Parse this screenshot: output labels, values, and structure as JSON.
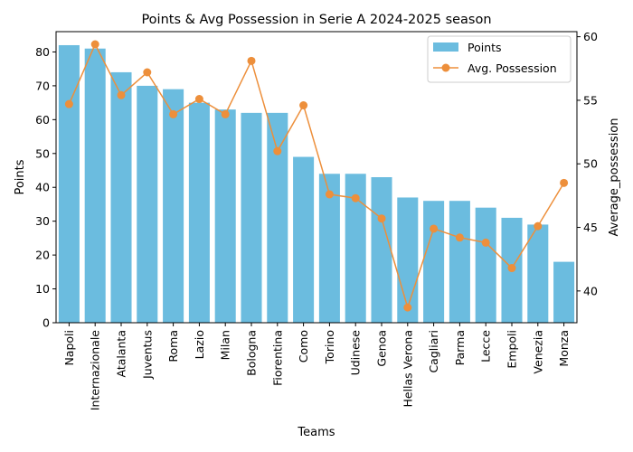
{
  "chart_data": {
    "type": "bar+line",
    "title": "Points & Avg Possession in Serie A 2024-2025 season",
    "xlabel": "Teams",
    "ylabel_left": "Points",
    "ylabel_right": "Average_possession",
    "categories": [
      "Napoli",
      "Internazionale",
      "Atalanta",
      "Juventus",
      "Roma",
      "Lazio",
      "Milan",
      "Bologna",
      "Fiorentina",
      "Como",
      "Torino",
      "Udinese",
      "Genoa",
      "Hellas Verona",
      "Cagliari",
      "Parma",
      "Lecce",
      "Empoli",
      "Venezia",
      "Monza"
    ],
    "series": [
      {
        "name": "Points",
        "type": "bar",
        "axis": "left",
        "color": "#6bbcdf",
        "values": [
          82,
          81,
          74,
          70,
          69,
          65,
          63,
          62,
          62,
          49,
          44,
          44,
          43,
          37,
          36,
          36,
          34,
          31,
          29,
          18
        ]
      },
      {
        "name": "Avg. Possession",
        "type": "line",
        "axis": "right",
        "color": "#ed8f3b",
        "values": [
          54.7,
          59.4,
          55.4,
          57.2,
          53.9,
          55.1,
          53.9,
          58.1,
          51.0,
          54.6,
          47.6,
          47.3,
          45.7,
          38.7,
          44.9,
          44.2,
          43.8,
          41.8,
          45.1,
          48.5
        ]
      }
    ],
    "ylim_left": [
      0,
      86
    ],
    "ylim_right": [
      37.5,
      60.4
    ],
    "yticks_left": [
      0,
      10,
      20,
      30,
      40,
      50,
      60,
      70,
      80
    ],
    "yticks_right": [
      40,
      45,
      50,
      55,
      60
    ],
    "legend_position": "top-right",
    "grid": false
  }
}
